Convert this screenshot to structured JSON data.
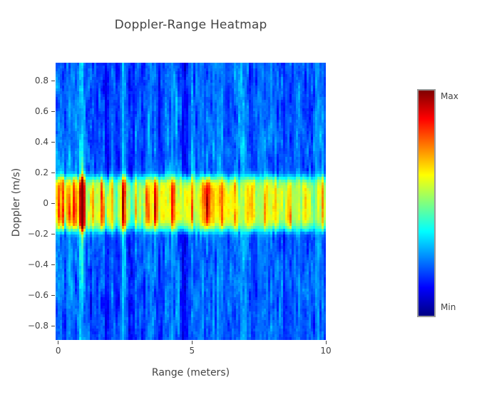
{
  "title": "Doppler-Range Heatmap",
  "axes": {
    "x": {
      "label": "Range (meters)",
      "tick_values": [
        0,
        5,
        10
      ],
      "tick_labels": [
        "0",
        "5",
        "10"
      ],
      "range": [
        -0.1,
        10.0
      ]
    },
    "y": {
      "label": "Doppler (m/s)",
      "tick_values": [
        0.8,
        0.6,
        0.4,
        0.2,
        0,
        -0.2,
        -0.4,
        -0.6,
        -0.8
      ],
      "tick_labels": [
        "0.8",
        "0.6",
        "0.4",
        "0.2",
        "0",
        "−0.2",
        "−0.4",
        "−0.6",
        "−0.8"
      ],
      "range": [
        -0.89,
        0.92
      ]
    }
  },
  "colorbar": {
    "max_label": "Max",
    "min_label": "Min",
    "colormap": "jet",
    "border_color": "#999999"
  },
  "colors": {
    "text": "#444444",
    "background": "#ffffff"
  },
  "chart_data": {
    "type": "heatmap",
    "title": "Doppler-Range Heatmap",
    "xlabel": "Range (meters)",
    "ylabel": "Doppler (m/s)",
    "x_range": [
      -0.1,
      10.0
    ],
    "y_range": [
      -0.89,
      0.92
    ],
    "x_ticks": [
      0,
      5,
      10
    ],
    "y_ticks": [
      0.8,
      0.6,
      0.4,
      0.2,
      0,
      -0.2,
      -0.4,
      -0.6,
      -0.8
    ],
    "value_scale": {
      "min_label": "Min",
      "max_label": "Max",
      "normalized": [
        0,
        1
      ]
    },
    "colormap": "jet",
    "colormap_stops": [
      {
        "t": 0.0,
        "c": [
          0,
          0,
          131
        ]
      },
      {
        "t": 0.125,
        "c": [
          0,
          0,
          255
        ]
      },
      {
        "t": 0.375,
        "c": [
          0,
          255,
          255
        ]
      },
      {
        "t": 0.625,
        "c": [
          255,
          255,
          0
        ]
      },
      {
        "t": 0.875,
        "c": [
          255,
          0,
          0
        ]
      },
      {
        "t": 1.0,
        "c": [
          128,
          0,
          0
        ]
      }
    ],
    "grid": {
      "nx": 126,
      "ny": 97
    },
    "noise": {
      "seed": 42,
      "floor": 0.21,
      "column_variation": 0.05,
      "texture": 0.055
    },
    "clutter_band": {
      "center_doppler": 0,
      "half_width": 0.175,
      "edge_sharpness": 6,
      "base_amplitude": 0.36,
      "column_variation": 0.07
    },
    "targets": [
      {
        "range": 0.05,
        "amplitude": 0.22,
        "width": 0.05,
        "doppler_streak": 0.04
      },
      {
        "range": 0.2,
        "amplitude": 0.28,
        "width": 0.06,
        "doppler_streak": 0.06
      },
      {
        "range": 0.38,
        "amplitude": 0.26,
        "width": 0.06,
        "doppler_streak": 0.08
      },
      {
        "range": 0.62,
        "amplitude": 0.2,
        "width": 0.06,
        "doppler_streak": 0.06
      },
      {
        "range": 0.9,
        "amplitude": 0.55,
        "width": 0.09,
        "doppler_streak": 0.3
      },
      {
        "range": 1.3,
        "amplitude": 0.1,
        "width": 0.05,
        "doppler_streak": 0.04
      },
      {
        "range": 1.65,
        "amplitude": 0.26,
        "width": 0.06,
        "doppler_streak": 0.12
      },
      {
        "range": 2.0,
        "amplitude": 0.16,
        "width": 0.06,
        "doppler_streak": 0.05
      },
      {
        "range": 2.45,
        "amplitude": 0.3,
        "width": 0.08,
        "doppler_streak": 0.1
      },
      {
        "range": 2.9,
        "amplitude": 0.14,
        "width": 0.06,
        "doppler_streak": 0.05
      },
      {
        "range": 3.3,
        "amplitude": 0.12,
        "width": 0.06,
        "doppler_streak": 0.05
      },
      {
        "range": 3.65,
        "amplitude": 0.3,
        "width": 0.07,
        "doppler_streak": 0.12
      },
      {
        "range": 4.3,
        "amplitude": 0.24,
        "width": 0.08,
        "doppler_streak": 0.06
      },
      {
        "range": 5.0,
        "amplitude": 0.18,
        "width": 0.07,
        "doppler_streak": 0.05
      },
      {
        "range": 5.55,
        "amplitude": 0.2,
        "width": 0.12,
        "doppler_streak": 0.06
      },
      {
        "range": 6.1,
        "amplitude": 0.14,
        "width": 0.08,
        "doppler_streak": 0.04
      },
      {
        "range": 6.6,
        "amplitude": 0.12,
        "width": 0.08,
        "doppler_streak": 0.04
      },
      {
        "range": 7.25,
        "amplitude": 0.08,
        "width": 0.06,
        "doppler_streak": 0.03
      },
      {
        "range": 7.75,
        "amplitude": 0.18,
        "width": 0.09,
        "doppler_streak": 0.06
      },
      {
        "range": 8.65,
        "amplitude": 0.18,
        "width": 0.08,
        "doppler_streak": 0.05
      },
      {
        "range": 9.2,
        "amplitude": 0.12,
        "width": 0.06,
        "doppler_streak": 0.04
      },
      {
        "range": 9.9,
        "amplitude": 0.1,
        "width": 0.05,
        "doppler_streak": 0.03
      }
    ]
  }
}
